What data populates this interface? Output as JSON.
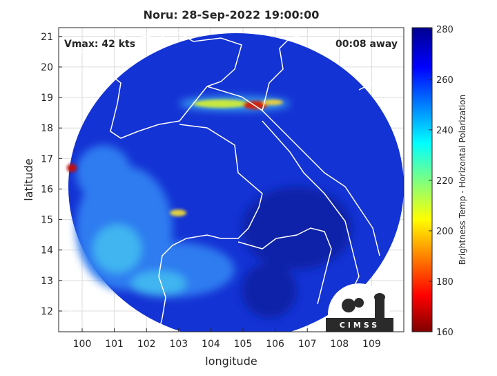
{
  "title": "Noru: 28-Sep-2022 19:00:00",
  "annotations": {
    "vmax": "Vmax: 42 kts",
    "time_offset": "00:08 away"
  },
  "x_axis": {
    "label": "longitude",
    "lim": [
      99.27,
      110.0
    ],
    "ticks": [
      100,
      101,
      102,
      103,
      104,
      105,
      106,
      107,
      108,
      109
    ]
  },
  "y_axis": {
    "label": "latitude",
    "lim": [
      11.32,
      21.29
    ],
    "ticks": [
      12,
      13,
      14,
      15,
      16,
      17,
      18,
      19,
      20,
      21
    ]
  },
  "colorbar": {
    "label": "Brightness Temp - Horizontal Polarization",
    "lim": [
      160,
      280.5
    ],
    "ticks": [
      160,
      180,
      200,
      220,
      240,
      260,
      280
    ]
  },
  "logo": "CIMSS"
}
